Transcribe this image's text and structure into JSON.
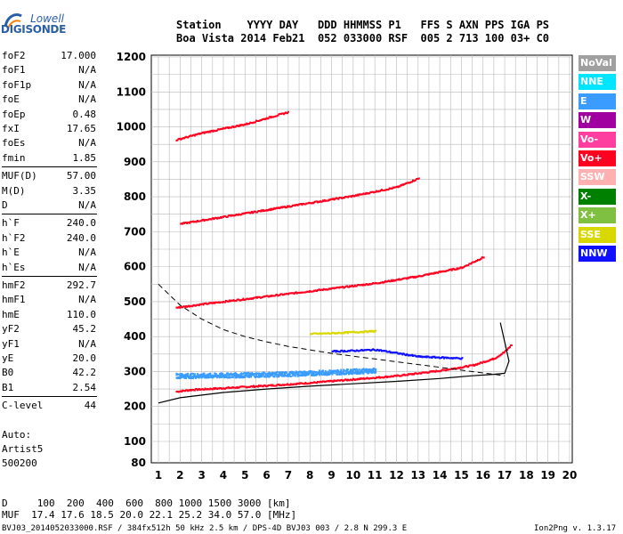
{
  "logo": {
    "line1": "Lowell",
    "line2": "DIGISONDE"
  },
  "header": {
    "line1": "Station    YYYY DAY   DDD HHMMSS P1   FFS S AXN PPS IGA PS",
    "line2": "Boa Vista 2014 Feb21  052 033000 RSF  005 2 713 100 03+ C0"
  },
  "params": [
    {
      "k": "foF2",
      "v": "17.000"
    },
    {
      "k": "foF1",
      "v": "N/A"
    },
    {
      "k": "foF1p",
      "v": "N/A"
    },
    {
      "k": "foE",
      "v": "N/A"
    },
    {
      "k": "foEp",
      "v": "0.48"
    },
    {
      "k": "fxI",
      "v": "17.65"
    },
    {
      "k": "foEs",
      "v": "N/A"
    },
    {
      "k": "fmin",
      "v": "1.85"
    },
    {
      "k": "MUF(D)",
      "v": "57.00"
    },
    {
      "k": "M(D)",
      "v": "3.35"
    },
    {
      "k": "D",
      "v": "N/A"
    },
    {
      "k": "h`F",
      "v": "240.0"
    },
    {
      "k": "h`F2",
      "v": "240.0"
    },
    {
      "k": "h`E",
      "v": "N/A"
    },
    {
      "k": "h`Es",
      "v": "N/A"
    },
    {
      "k": "hmF2",
      "v": "292.7"
    },
    {
      "k": "hmF1",
      "v": "N/A"
    },
    {
      "k": "hmE",
      "v": "110.0"
    },
    {
      "k": "yF2",
      "v": "45.2"
    },
    {
      "k": "yF1",
      "v": "N/A"
    },
    {
      "k": "yE",
      "v": "20.0"
    },
    {
      "k": "B0",
      "v": "42.2"
    },
    {
      "k": "B1",
      "v": "2.54"
    },
    {
      "k": "C-level",
      "v": "44"
    }
  ],
  "artist": {
    "line1": "Auto:",
    "line2": "Artist5",
    "line3": "500200"
  },
  "legend": [
    {
      "label": "NoVal",
      "color": "#a0a0a0"
    },
    {
      "label": "NNE",
      "color": "#00e5ff"
    },
    {
      "label": "E",
      "color": "#3a9cff"
    },
    {
      "label": "W",
      "color": "#a000a0"
    },
    {
      "label": "Vo-",
      "color": "#ff3fa0"
    },
    {
      "label": "Vo+",
      "color": "#ff0020"
    },
    {
      "label": "SSW",
      "color": "#ffb0b0"
    },
    {
      "label": "X-",
      "color": "#008000"
    },
    {
      "label": "X+",
      "color": "#80c040"
    },
    {
      "label": "SSE",
      "color": "#d8d800"
    },
    {
      "label": "NNW",
      "color": "#1010ff"
    }
  ],
  "footer": {
    "line1": "D     100  200  400  600  800 1000 1500 3000 [km]",
    "line2": "MUF  17.4 17.6 18.5 20.0 22.1 25.2 34.0 57.0 [MHz]",
    "line3": "BVJ03_2014052033000.RSF / 384fx512h 50 kHz 2.5 km / DPS-4D BVJ03 003 / 2.8 N 299.3 E",
    "version": "Ion2Png v. 1.3.17"
  },
  "chart_data": {
    "type": "scatter",
    "xlim": [
      1,
      20
    ],
    "ylim": [
      80,
      1200
    ],
    "x_ticks": [
      "1",
      "2",
      "3",
      "4",
      "5",
      "6",
      "7",
      "8",
      "9",
      "10",
      "11",
      "12",
      "13",
      "14",
      "15",
      "16",
      "17",
      "18",
      "19",
      "20"
    ],
    "y_ticks": [
      "80",
      "100",
      "200",
      "300",
      "400",
      "500",
      "600",
      "700",
      "800",
      "900",
      "1000",
      "1100",
      "1200"
    ],
    "y_tick_values": [
      80,
      100,
      200,
      300,
      400,
      500,
      600,
      700,
      800,
      900,
      1000,
      1100,
      1200
    ],
    "grid": true,
    "series": [
      {
        "name": "Vo+",
        "color": "#ff0020",
        "x": [
          1.8,
          2.5,
          4,
          6,
          8,
          10,
          12,
          14,
          15.5,
          16.5,
          17,
          17.3
        ],
        "y": [
          245,
          250,
          255,
          262,
          270,
          280,
          290,
          305,
          320,
          340,
          360,
          380
        ]
      },
      {
        "name": "Vo+ 2nd hop",
        "color": "#ff0020",
        "x": [
          1.8,
          3,
          5,
          7,
          9,
          11,
          13,
          15,
          16
        ],
        "y": [
          485,
          495,
          510,
          525,
          540,
          555,
          575,
          600,
          630
        ]
      },
      {
        "name": "Vo+ 3rd hop",
        "color": "#ff0020",
        "x": [
          2,
          4,
          6,
          8,
          10,
          12,
          13
        ],
        "y": [
          725,
          745,
          765,
          785,
          805,
          830,
          855
        ]
      },
      {
        "name": "Vo+ 4th hop",
        "color": "#ff0020",
        "x": [
          1.8,
          3,
          5,
          7
        ],
        "y": [
          965,
          985,
          1010,
          1045
        ]
      },
      {
        "name": "NNE",
        "color": "#3a9cff",
        "x": [
          1.8,
          3,
          5,
          7,
          9,
          11
        ],
        "y": [
          290,
          290,
          292,
          295,
          300,
          305
        ]
      },
      {
        "name": "SSE",
        "color": "#d8d800",
        "x": [
          8,
          9,
          10,
          11
        ],
        "y": [
          410,
          412,
          415,
          418
        ]
      },
      {
        "name": "NNW",
        "color": "#1010ff",
        "x": [
          9,
          10,
          11,
          13,
          15
        ],
        "y": [
          360,
          362,
          365,
          345,
          340
        ]
      }
    ],
    "profile_solid": {
      "x": [
        1,
        2,
        4,
        6,
        8,
        10,
        12,
        14,
        15.5,
        16.5,
        17,
        17.2,
        16.8
      ],
      "y": [
        210,
        225,
        240,
        250,
        258,
        265,
        272,
        280,
        288,
        292,
        295,
        330,
        440
      ]
    },
    "profile_dashed": {
      "x": [
        1,
        2,
        3,
        4,
        5,
        6,
        7,
        8,
        9,
        10,
        11,
        12,
        13,
        14,
        15,
        16,
        17
      ],
      "y": [
        550,
        490,
        450,
        420,
        400,
        385,
        372,
        362,
        352,
        344,
        336,
        328,
        320,
        312,
        304,
        296,
        288
      ]
    }
  }
}
